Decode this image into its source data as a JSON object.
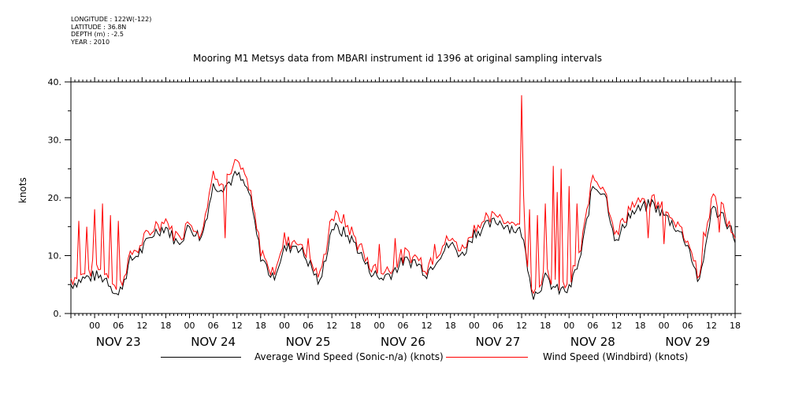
{
  "meta": {
    "longitude": "LONGITUDE : 122W(-122)",
    "latitude": "LATITUDE : 36.8N",
    "depth": "DEPTH (m) : -2.5",
    "year": "YEAR : 2010"
  },
  "chart_data": {
    "type": "line",
    "title": "Mooring M1 Metsys data from MBARI instrument id 1396 at original sampling intervals",
    "ylabel": "knots",
    "xlabel": "",
    "ylim": [
      0,
      40
    ],
    "yticks": [
      "0.",
      "10.",
      "20.",
      "30.",
      "40."
    ],
    "xlim_hours": [
      -12,
      156
    ],
    "hour_tick_labels": [
      "00",
      "06",
      "12",
      "18",
      "00",
      "06",
      "12",
      "18",
      "00",
      "06",
      "12",
      "18",
      "00",
      "06",
      "12",
      "18",
      "00",
      "06",
      "12",
      "18",
      "00",
      "06",
      "12",
      "18",
      "00",
      "06",
      "12",
      "18"
    ],
    "day_labels": [
      "NOV 23",
      "NOV 24",
      "NOV 25",
      "NOV 26",
      "NOV 27",
      "NOV 28",
      "NOV 29"
    ],
    "grid": false,
    "legend_position": "bottom",
    "series": [
      {
        "name": "Average Wind Speed (Sonic-n/a) (knots)",
        "color": "#000000",
        "x_hours": [
          -12,
          -9,
          -6,
          -3,
          0,
          3,
          6,
          9,
          12,
          15,
          18,
          21,
          24,
          27,
          30,
          33,
          36,
          39,
          42,
          45,
          48,
          51,
          54,
          57,
          60,
          63,
          66,
          69,
          72,
          75,
          78,
          81,
          84,
          87,
          90,
          93,
          96,
          99,
          102,
          105,
          108,
          111,
          114,
          117,
          120,
          123,
          126,
          129,
          132,
          135,
          138,
          141,
          144,
          147,
          150,
          153,
          156
        ],
        "values": [
          5,
          6,
          6.5,
          6,
          3,
          9,
          11,
          14,
          15,
          12,
          15,
          13,
          22,
          22,
          24,
          21,
          10,
          6,
          11,
          12,
          9,
          5,
          15,
          14,
          12,
          8,
          6,
          7,
          9,
          9,
          7,
          10,
          12,
          10,
          14,
          15,
          16,
          15,
          14,
          3,
          6,
          4,
          4,
          10,
          22,
          21,
          12,
          17,
          18,
          19,
          17,
          15,
          12,
          5,
          18,
          17,
          13
        ]
      },
      {
        "name": "Wind Speed (Windbird) (knots)",
        "color": "#ff0000",
        "x_hours": [
          -12,
          -9,
          -6,
          -3,
          0,
          3,
          6,
          9,
          12,
          15,
          18,
          21,
          24,
          27,
          30,
          33,
          36,
          39,
          42,
          45,
          48,
          51,
          54,
          57,
          60,
          63,
          66,
          69,
          72,
          75,
          78,
          81,
          84,
          87,
          90,
          93,
          96,
          99,
          102,
          105,
          108,
          111,
          114,
          117,
          120,
          123,
          126,
          129,
          132,
          135,
          138,
          141,
          144,
          147,
          150,
          153,
          156
        ],
        "values": [
          6,
          7,
          8,
          7,
          4,
          10,
          12,
          15,
          16,
          13,
          16,
          14,
          24,
          23,
          26,
          22,
          11,
          7,
          12,
          13,
          10,
          6,
          17,
          16,
          13,
          9,
          7,
          8,
          10,
          10,
          8,
          11,
          13,
          11,
          15,
          16,
          17,
          16,
          15,
          4,
          7,
          5,
          5,
          11,
          24,
          22,
          13,
          18,
          19,
          20,
          18,
          16,
          13,
          6,
          20,
          18,
          14
        ],
        "spikes": [
          [
            -10,
            16
          ],
          [
            -8,
            15
          ],
          [
            -6,
            18
          ],
          [
            -4,
            19
          ],
          [
            -2,
            17
          ],
          [
            0,
            16
          ],
          [
            20,
            14
          ],
          [
            27,
            13
          ],
          [
            42,
            14
          ],
          [
            48,
            13
          ],
          [
            66,
            12
          ],
          [
            70,
            13
          ],
          [
            80,
            12
          ],
          [
            102,
            37.7
          ],
          [
            102.4,
            20.5
          ],
          [
            104,
            18
          ],
          [
            106,
            17
          ],
          [
            108,
            19
          ],
          [
            110,
            25.5
          ],
          [
            111,
            21
          ],
          [
            112,
            25
          ],
          [
            114,
            22
          ],
          [
            116,
            19
          ],
          [
            118,
            16
          ],
          [
            127,
            16
          ],
          [
            134,
            13
          ],
          [
            138,
            12
          ],
          [
            143,
            13
          ],
          [
            148,
            14
          ],
          [
            152,
            14
          ],
          [
            154,
            15
          ],
          [
            155,
            14
          ]
        ]
      }
    ]
  }
}
